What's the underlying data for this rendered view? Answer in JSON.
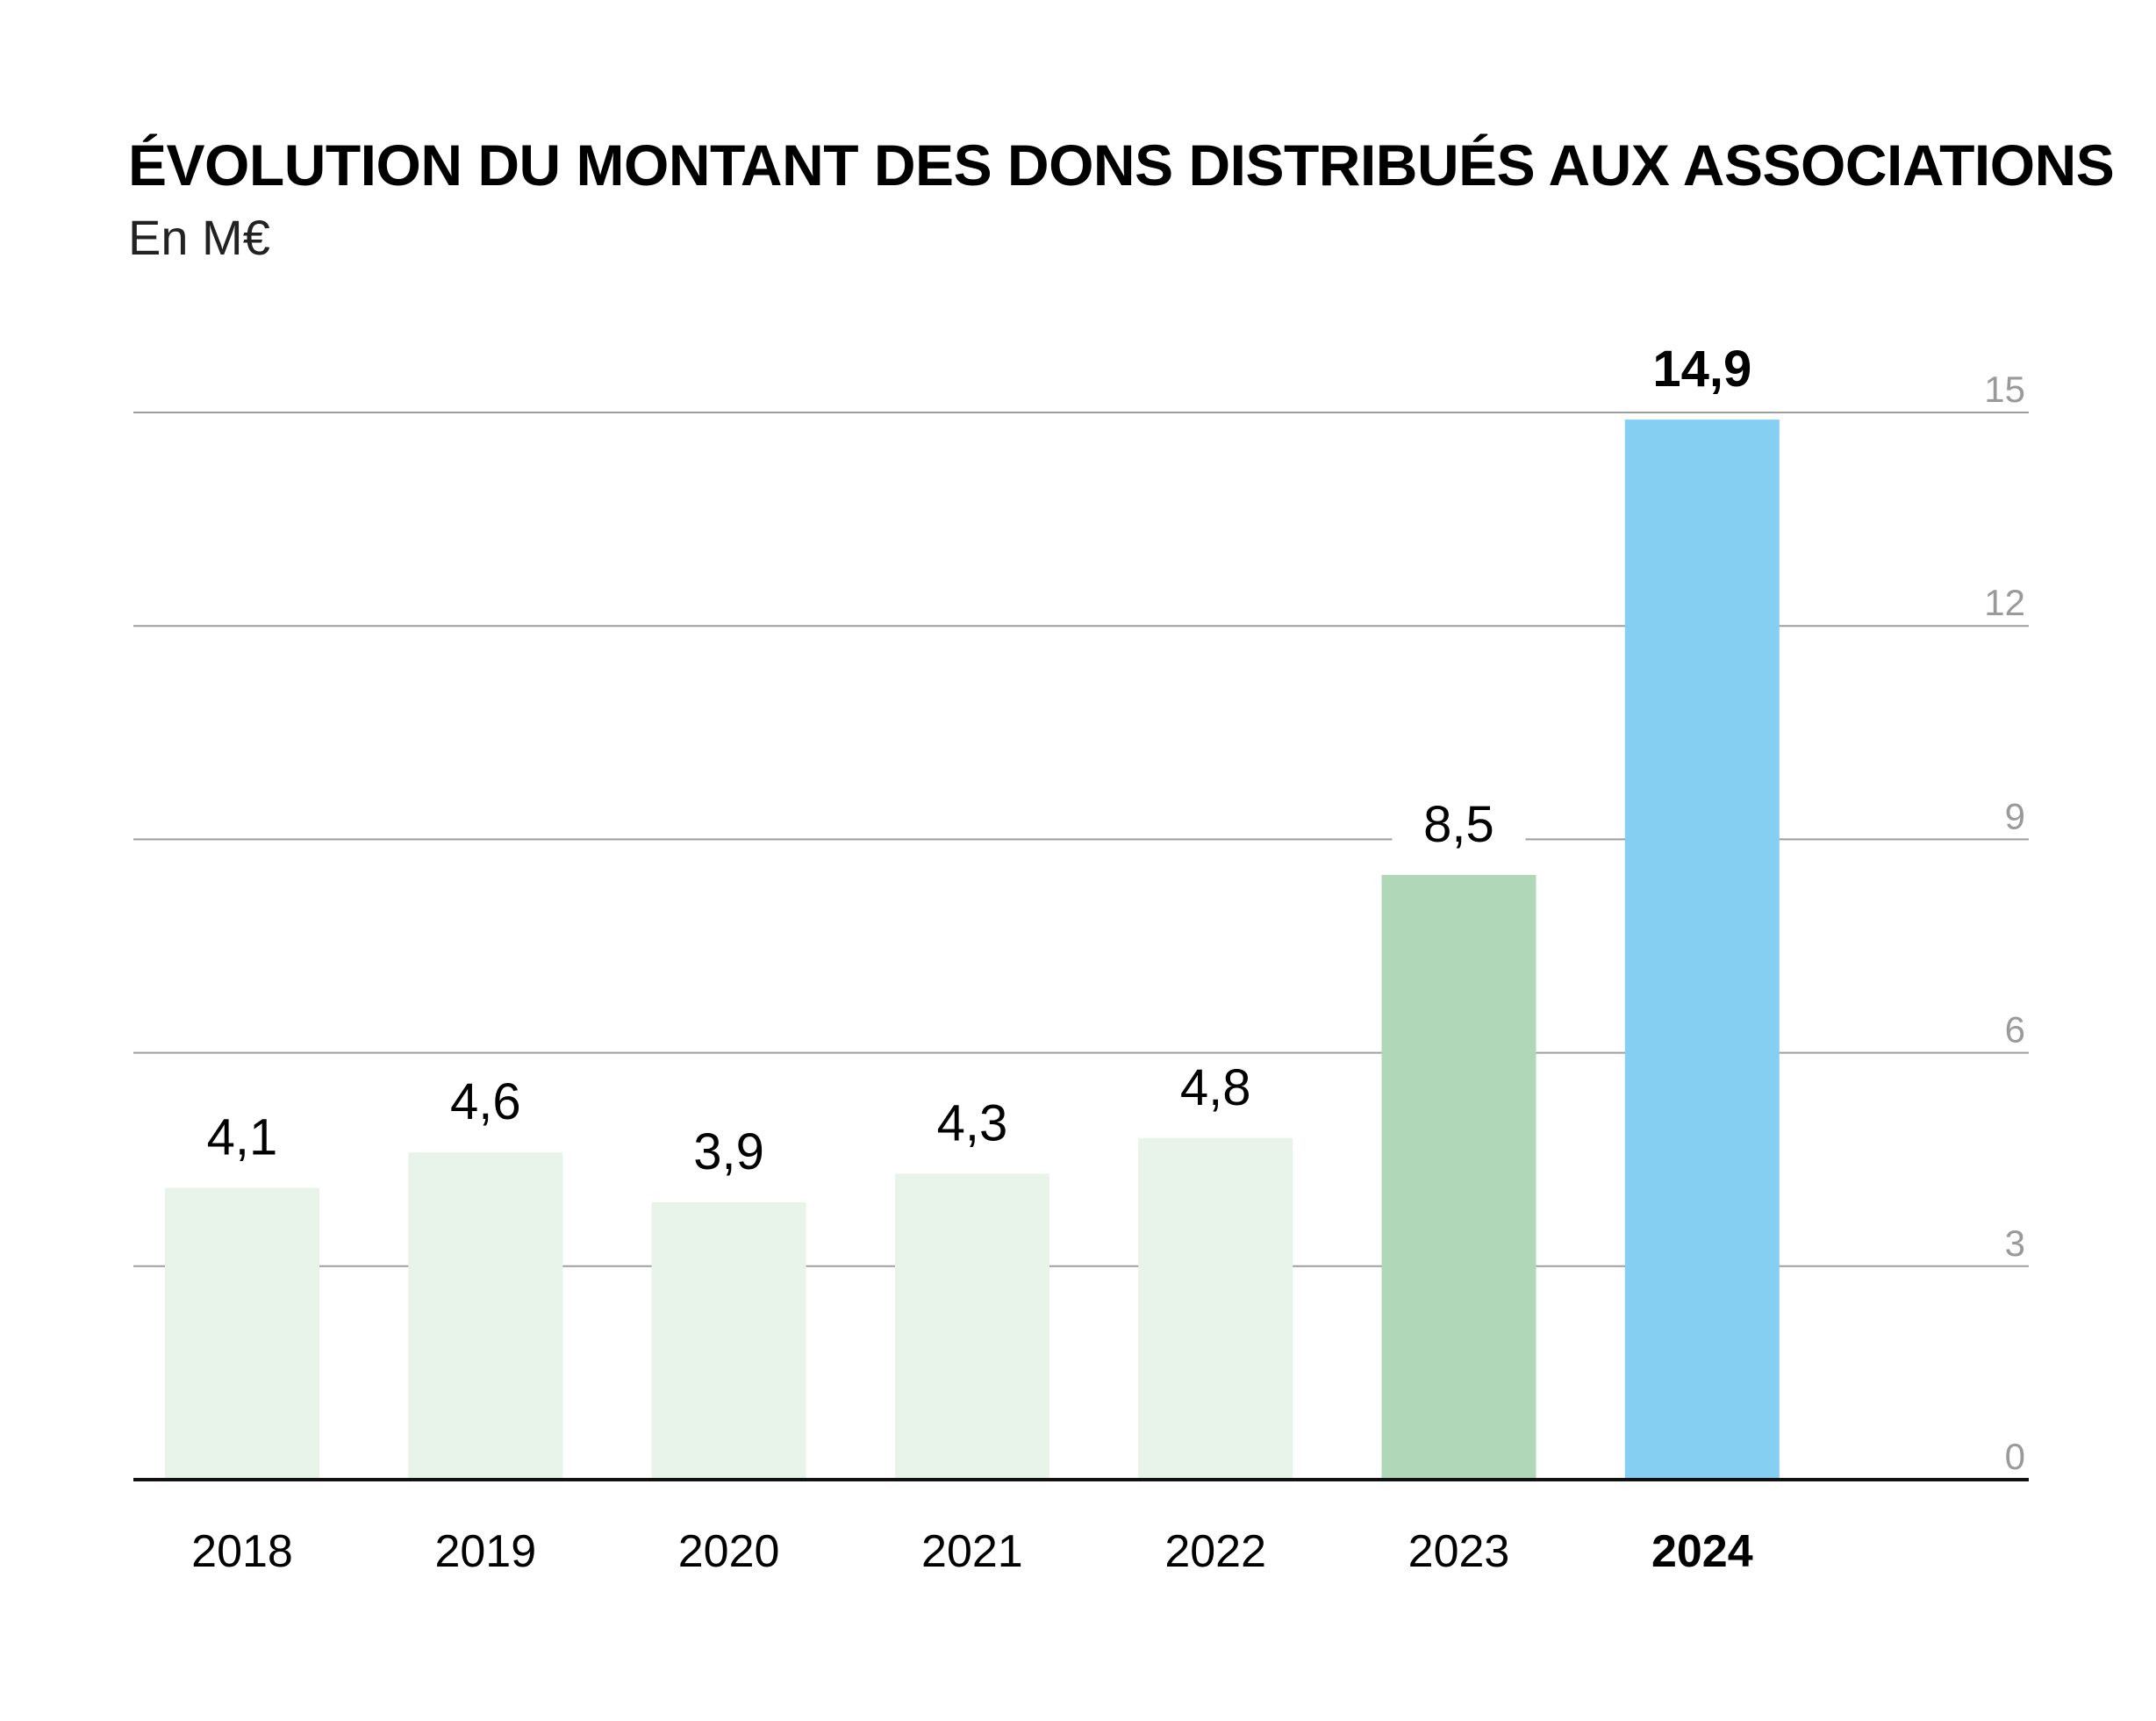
{
  "title": "ÉVOLUTION DU MONTANT DES DONS DISTRIBUÉS AUX ASSOCIATIONS",
  "subtitle": "En M€",
  "chart_data": {
    "type": "bar",
    "categories": [
      "2018",
      "2019",
      "2020",
      "2021",
      "2022",
      "2023",
      "2024"
    ],
    "values": [
      4.1,
      4.6,
      3.9,
      4.3,
      4.8,
      8.5,
      14.9
    ],
    "value_labels": [
      "4,1",
      "4,6",
      "3,9",
      "4,3",
      "4,8",
      "8,5",
      "14,9"
    ],
    "colors": [
      "#e8f3ea",
      "#e8f3ea",
      "#e8f3ea",
      "#e8f3ea",
      "#e8f3ea",
      "#b0d8b8",
      "#84cff2"
    ],
    "highlight_index": 6,
    "y_ticks": [
      0,
      3,
      6,
      9,
      12,
      15
    ],
    "y_tick_labels": [
      "0",
      "3",
      "6",
      "9",
      "12",
      "15"
    ],
    "ylim": [
      0,
      15
    ],
    "y_axis_side": "right",
    "grid": true,
    "xlabel": "",
    "ylabel": ""
  }
}
